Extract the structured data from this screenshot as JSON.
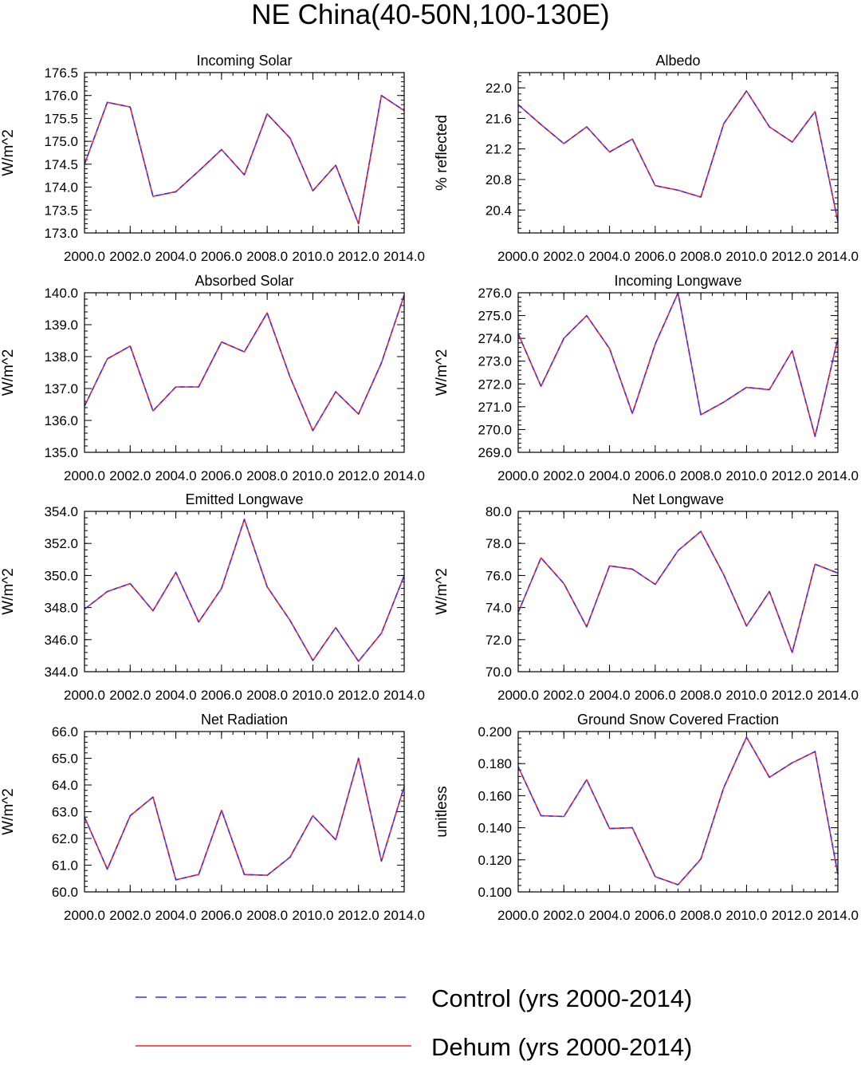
{
  "figure_title": "NE China(40-50N,100-130E)",
  "colors": {
    "control": "#3333ff",
    "dehum": "#ff2020",
    "axis": "#000000"
  },
  "legend": {
    "control_label": "Control (yrs 2000-2014)",
    "dehum_label": "Dehum (yrs 2000-2014)"
  },
  "chart_data": [
    {
      "type": "line",
      "title": "Incoming Solar",
      "xlabel": "",
      "ylabel": "W/m^2",
      "x": [
        2000,
        2001,
        2002,
        2003,
        2004,
        2005,
        2006,
        2007,
        2008,
        2009,
        2010,
        2011,
        2012,
        2013,
        2014
      ],
      "xlim": [
        2000,
        2014
      ],
      "xticks": [
        2000,
        2002,
        2004,
        2006,
        2008,
        2010,
        2012,
        2014
      ],
      "xtick_labels": [
        "2000.0",
        "2002.0",
        "2004.0",
        "2006.0",
        "2008.0",
        "2010.0",
        "2012.0",
        "2014.0"
      ],
      "ylim": [
        173.0,
        176.5
      ],
      "yticks": [
        173.0,
        173.5,
        174.0,
        174.5,
        175.0,
        175.5,
        176.0,
        176.5
      ],
      "ytick_labels": [
        "173.0",
        "173.5",
        "174.0",
        "174.5",
        "175.0",
        "175.5",
        "176.0",
        "176.5"
      ],
      "series": [
        {
          "name": "Control (yrs 2000-2014)",
          "values": [
            174.5,
            175.85,
            175.75,
            173.8,
            173.9,
            174.35,
            174.82,
            174.27,
            175.6,
            175.07,
            173.92,
            174.48,
            173.2,
            176.0,
            175.67
          ]
        },
        {
          "name": "Dehum (yrs 2000-2014)",
          "values": [
            174.5,
            175.85,
            175.75,
            173.8,
            173.9,
            174.35,
            174.82,
            174.27,
            175.6,
            175.07,
            173.92,
            174.48,
            173.2,
            176.0,
            175.67
          ]
        }
      ]
    },
    {
      "type": "line",
      "title": "Albedo",
      "xlabel": "",
      "ylabel": "% reflected",
      "x": [
        2000,
        2001,
        2002,
        2003,
        2004,
        2005,
        2006,
        2007,
        2008,
        2009,
        2010,
        2011,
        2012,
        2013,
        2014
      ],
      "xlim": [
        2000,
        2014
      ],
      "xticks": [
        2000,
        2002,
        2004,
        2006,
        2008,
        2010,
        2012,
        2014
      ],
      "xtick_labels": [
        "2000.0",
        "2002.0",
        "2004.0",
        "2006.0",
        "2008.0",
        "2010.0",
        "2012.0",
        "2014.0"
      ],
      "ylim": [
        20.1,
        22.2
      ],
      "yticks": [
        20.4,
        20.8,
        21.2,
        21.6,
        22.0
      ],
      "ytick_labels": [
        "20.4",
        "20.8",
        "21.2",
        "21.6",
        "22.0"
      ],
      "series": [
        {
          "name": "Control (yrs 2000-2014)",
          "values": [
            21.78,
            21.52,
            21.27,
            21.49,
            21.16,
            21.33,
            20.72,
            20.66,
            20.57,
            21.53,
            21.96,
            21.49,
            21.29,
            21.69,
            20.25
          ]
        },
        {
          "name": "Dehum (yrs 2000-2014)",
          "values": [
            21.78,
            21.52,
            21.27,
            21.49,
            21.16,
            21.33,
            20.72,
            20.66,
            20.57,
            21.53,
            21.96,
            21.49,
            21.29,
            21.69,
            20.25
          ]
        }
      ]
    },
    {
      "type": "line",
      "title": "Absorbed Solar",
      "xlabel": "",
      "ylabel": "W/m^2",
      "x": [
        2000,
        2001,
        2002,
        2003,
        2004,
        2005,
        2006,
        2007,
        2008,
        2009,
        2010,
        2011,
        2012,
        2013,
        2014
      ],
      "xlim": [
        2000,
        2014
      ],
      "xticks": [
        2000,
        2002,
        2004,
        2006,
        2008,
        2010,
        2012,
        2014
      ],
      "xtick_labels": [
        "2000.0",
        "2002.0",
        "2004.0",
        "2006.0",
        "2008.0",
        "2010.0",
        "2012.0",
        "2014.0"
      ],
      "ylim": [
        135.0,
        140.0
      ],
      "yticks": [
        135.0,
        136.0,
        137.0,
        138.0,
        139.0,
        140.0
      ],
      "ytick_labels": [
        "135.0",
        "136.0",
        "137.0",
        "138.0",
        "139.0",
        "140.0"
      ],
      "series": [
        {
          "name": "Control (yrs 2000-2014)",
          "values": [
            136.45,
            137.93,
            138.33,
            136.3,
            137.05,
            137.05,
            138.46,
            138.15,
            139.37,
            137.36,
            135.68,
            136.9,
            136.2,
            137.8,
            139.93
          ]
        },
        {
          "name": "Dehum (yrs 2000-2014)",
          "values": [
            136.45,
            137.93,
            138.33,
            136.3,
            137.05,
            137.05,
            138.46,
            138.15,
            139.37,
            137.36,
            135.68,
            136.9,
            136.2,
            137.8,
            139.93
          ]
        }
      ]
    },
    {
      "type": "line",
      "title": "Incoming Longwave",
      "xlabel": "",
      "ylabel": "W/m^2",
      "x": [
        2000,
        2001,
        2002,
        2003,
        2004,
        2005,
        2006,
        2007,
        2008,
        2009,
        2010,
        2011,
        2012,
        2013,
        2014
      ],
      "xlim": [
        2000,
        2014
      ],
      "xticks": [
        2000,
        2002,
        2004,
        2006,
        2008,
        2010,
        2012,
        2014
      ],
      "xtick_labels": [
        "2000.0",
        "2002.0",
        "2004.0",
        "2006.0",
        "2008.0",
        "2010.0",
        "2012.0",
        "2014.0"
      ],
      "ylim": [
        269.0,
        276.0
      ],
      "yticks": [
        269.0,
        270.0,
        271.0,
        272.0,
        273.0,
        274.0,
        275.0,
        276.0
      ],
      "ytick_labels": [
        "269.0",
        "270.0",
        "271.0",
        "272.0",
        "273.0",
        "274.0",
        "275.0",
        "276.0"
      ],
      "series": [
        {
          "name": "Control (yrs 2000-2014)",
          "values": [
            274.2,
            271.9,
            274.0,
            275.0,
            273.55,
            270.7,
            273.75,
            276.0,
            270.65,
            271.2,
            271.85,
            271.75,
            273.45,
            269.7,
            274.0
          ]
        },
        {
          "name": "Dehum (yrs 2000-2014)",
          "values": [
            274.2,
            271.9,
            274.0,
            275.0,
            273.55,
            270.7,
            273.75,
            276.0,
            270.65,
            271.2,
            271.85,
            271.75,
            273.45,
            269.7,
            274.0
          ]
        }
      ]
    },
    {
      "type": "line",
      "title": "Emitted Longwave",
      "xlabel": "",
      "ylabel": "W/m^2",
      "x": [
        2000,
        2001,
        2002,
        2003,
        2004,
        2005,
        2006,
        2007,
        2008,
        2009,
        2010,
        2011,
        2012,
        2013,
        2014
      ],
      "xlim": [
        2000,
        2014
      ],
      "xticks": [
        2000,
        2002,
        2004,
        2006,
        2008,
        2010,
        2012,
        2014
      ],
      "xtick_labels": [
        "2000.0",
        "2002.0",
        "2004.0",
        "2006.0",
        "2008.0",
        "2010.0",
        "2012.0",
        "2014.0"
      ],
      "ylim": [
        344.0,
        354.0
      ],
      "yticks": [
        344.0,
        346.0,
        348.0,
        350.0,
        352.0,
        354.0
      ],
      "ytick_labels": [
        "344.0",
        "346.0",
        "348.0",
        "350.0",
        "352.0",
        "354.0"
      ],
      "series": [
        {
          "name": "Control (yrs 2000-2014)",
          "values": [
            347.9,
            349.0,
            349.5,
            347.8,
            350.2,
            347.1,
            349.2,
            353.5,
            349.3,
            347.2,
            344.7,
            346.75,
            344.65,
            346.4,
            350.0
          ]
        },
        {
          "name": "Dehum (yrs 2000-2014)",
          "values": [
            347.9,
            349.0,
            349.5,
            347.8,
            350.2,
            347.1,
            349.2,
            353.5,
            349.3,
            347.2,
            344.7,
            346.75,
            344.65,
            346.4,
            350.0
          ]
        }
      ]
    },
    {
      "type": "line",
      "title": "Net Longwave",
      "xlabel": "",
      "ylabel": "W/m^2",
      "x": [
        2000,
        2001,
        2002,
        2003,
        2004,
        2005,
        2006,
        2007,
        2008,
        2009,
        2010,
        2011,
        2012,
        2013,
        2014
      ],
      "xlim": [
        2000,
        2014
      ],
      "xticks": [
        2000,
        2002,
        2004,
        2006,
        2008,
        2010,
        2012,
        2014
      ],
      "xtick_labels": [
        "2000.0",
        "2002.0",
        "2004.0",
        "2006.0",
        "2008.0",
        "2010.0",
        "2012.0",
        "2014.0"
      ],
      "ylim": [
        70.0,
        80.0
      ],
      "yticks": [
        70.0,
        72.0,
        74.0,
        76.0,
        78.0,
        80.0
      ],
      "ytick_labels": [
        "70.0",
        "72.0",
        "74.0",
        "76.0",
        "78.0",
        "80.0"
      ],
      "series": [
        {
          "name": "Control (yrs 2000-2014)",
          "values": [
            73.7,
            77.1,
            75.5,
            72.8,
            76.6,
            76.4,
            75.45,
            77.55,
            78.75,
            76.05,
            72.85,
            75.0,
            71.2,
            76.7,
            76.15
          ]
        },
        {
          "name": "Dehum (yrs 2000-2014)",
          "values": [
            73.7,
            77.1,
            75.5,
            72.8,
            76.6,
            76.4,
            75.45,
            77.55,
            78.75,
            76.05,
            72.85,
            75.0,
            71.2,
            76.7,
            76.15
          ]
        }
      ]
    },
    {
      "type": "line",
      "title": "Net Radiation",
      "xlabel": "",
      "ylabel": "W/m^2",
      "x": [
        2000,
        2001,
        2002,
        2003,
        2004,
        2005,
        2006,
        2007,
        2008,
        2009,
        2010,
        2011,
        2012,
        2013,
        2014
      ],
      "xlim": [
        2000,
        2014
      ],
      "xticks": [
        2000,
        2002,
        2004,
        2006,
        2008,
        2010,
        2012,
        2014
      ],
      "xtick_labels": [
        "2000.0",
        "2002.0",
        "2004.0",
        "2006.0",
        "2008.0",
        "2010.0",
        "2012.0",
        "2014.0"
      ],
      "ylim": [
        60.0,
        66.0
      ],
      "yticks": [
        60.0,
        61.0,
        62.0,
        63.0,
        64.0,
        65.0,
        66.0
      ],
      "ytick_labels": [
        "60.0",
        "61.0",
        "62.0",
        "63.0",
        "64.0",
        "65.0",
        "66.0"
      ],
      "series": [
        {
          "name": "Control (yrs 2000-2014)",
          "values": [
            62.8,
            60.85,
            62.85,
            63.55,
            60.45,
            60.65,
            63.05,
            60.65,
            60.62,
            61.3,
            62.85,
            61.95,
            65.0,
            61.15,
            63.95
          ]
        },
        {
          "name": "Dehum (yrs 2000-2014)",
          "values": [
            62.8,
            60.85,
            62.85,
            63.55,
            60.45,
            60.65,
            63.05,
            60.65,
            60.62,
            61.3,
            62.85,
            61.95,
            65.0,
            61.15,
            63.95
          ]
        }
      ]
    },
    {
      "type": "line",
      "title": "Ground Snow Covered Fraction",
      "xlabel": "",
      "ylabel": "unitless",
      "x": [
        2000,
        2001,
        2002,
        2003,
        2004,
        2005,
        2006,
        2007,
        2008,
        2009,
        2010,
        2011,
        2012,
        2013,
        2014
      ],
      "xlim": [
        2000,
        2014
      ],
      "xticks": [
        2000,
        2002,
        2004,
        2006,
        2008,
        2010,
        2012,
        2014
      ],
      "xtick_labels": [
        "2000.0",
        "2002.0",
        "2004.0",
        "2006.0",
        "2008.0",
        "2010.0",
        "2012.0",
        "2014.0"
      ],
      "ylim": [
        0.1,
        0.2
      ],
      "yticks": [
        0.1,
        0.12,
        0.14,
        0.16,
        0.18,
        0.2
      ],
      "ytick_labels": [
        "0.100",
        "0.120",
        "0.140",
        "0.160",
        "0.180",
        "0.200"
      ],
      "series": [
        {
          "name": "Control (yrs 2000-2014)",
          "values": [
            0.178,
            0.1475,
            0.147,
            0.17,
            0.1395,
            0.14,
            0.1095,
            0.1045,
            0.1205,
            0.165,
            0.1965,
            0.1715,
            0.1805,
            0.1875,
            0.111
          ]
        },
        {
          "name": "Dehum (yrs 2000-2014)",
          "values": [
            0.178,
            0.1475,
            0.147,
            0.17,
            0.1395,
            0.14,
            0.1095,
            0.1045,
            0.1205,
            0.165,
            0.1965,
            0.1715,
            0.1805,
            0.1875,
            0.111
          ]
        }
      ]
    }
  ]
}
